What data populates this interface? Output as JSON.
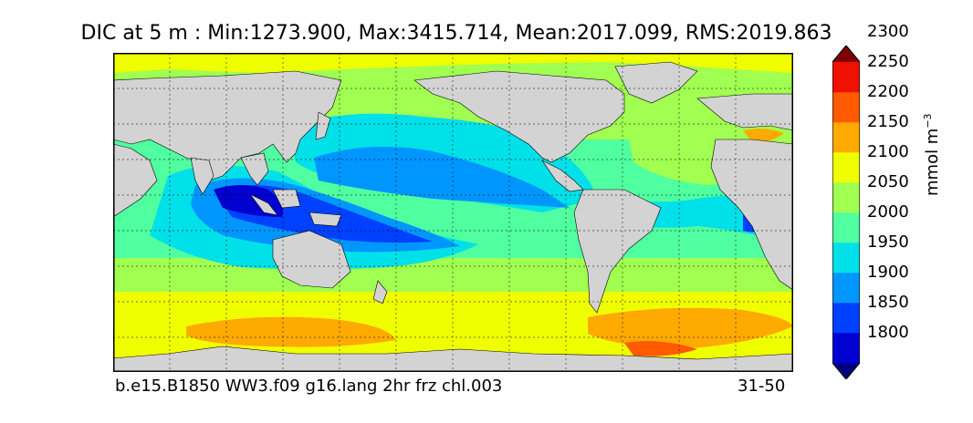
{
  "title": "DIC at 5 m : Min:1273.900, Max:3415.714, Mean:2017.099, RMS:2019.863",
  "footer": {
    "case_name": "b.e15.B1850 WW3.f09 g16.lang 2hr frz chl.003",
    "years": "31-50"
  },
  "colorbar": {
    "units_text": "mmol m",
    "units_exponent": "−3",
    "levels": [
      "1800",
      "1850",
      "1900",
      "1950",
      "2000",
      "2050",
      "2100",
      "2150",
      "2200",
      "2250",
      "2300"
    ],
    "colors": [
      "#00007f",
      "#0000d0",
      "#0040ff",
      "#0096ff",
      "#00e0e8",
      "#50ffa0",
      "#a0ff50",
      "#f0ff00",
      "#ffaa00",
      "#ff5a00",
      "#ee1000",
      "#800000"
    ]
  },
  "map": {
    "land_color": "#d3d3d3",
    "projection": "global lat-lon, Pacific-centered"
  }
}
